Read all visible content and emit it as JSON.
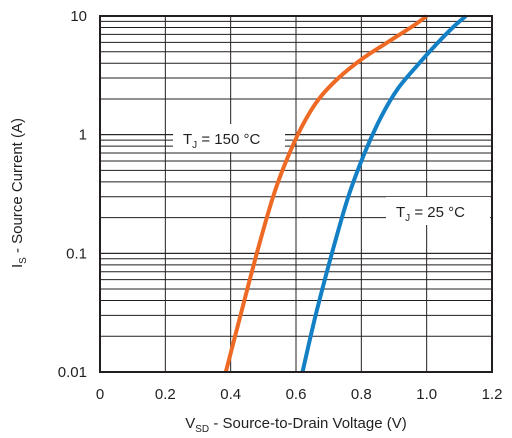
{
  "chart_data": {
    "type": "line",
    "xlabel": {
      "main": "V",
      "sub": "SD",
      "rest": " - Source-to-Drain Voltage (V)"
    },
    "ylabel": {
      "main": "I",
      "sub": "S",
      "rest": " - Source Current (A)"
    },
    "xlim": [
      0,
      1.2
    ],
    "ylim": [
      0.01,
      10
    ],
    "yscale": "log",
    "grid": true,
    "x_ticks": [
      0,
      0.2,
      0.4,
      0.6,
      0.8,
      1.0,
      1.2
    ],
    "x_tick_labels": [
      "0",
      "0.2",
      "0.4",
      "0.6",
      "0.8",
      "1.0",
      "1.2"
    ],
    "y_ticks": [
      0.01,
      0.1,
      1,
      10
    ],
    "y_tick_labels": [
      "0.01",
      "0.1",
      "1",
      "10"
    ],
    "series": [
      {
        "label": {
          "main": "T",
          "sub": "J",
          "rest": " = 150 °C"
        },
        "color": "#ee6a24",
        "x": [
          0.385,
          0.43,
          0.48,
          0.53,
          0.57,
          0.62,
          0.67,
          0.73,
          0.8,
          0.88,
          0.96,
          1.0
        ],
        "y": [
          0.01,
          0.03,
          0.1,
          0.3,
          0.6,
          1.2,
          2.0,
          3.0,
          4.3,
          6.0,
          8.3,
          10
        ]
      },
      {
        "label": {
          "main": "T",
          "sub": "J",
          "rest": " = 25 °C"
        },
        "color": "#1380c6",
        "x": [
          0.62,
          0.66,
          0.71,
          0.76,
          0.81,
          0.86,
          0.91,
          0.97,
          1.03,
          1.08,
          1.12
        ],
        "y": [
          0.01,
          0.03,
          0.1,
          0.3,
          0.7,
          1.4,
          2.4,
          3.8,
          5.8,
          8.0,
          10
        ]
      }
    ]
  }
}
